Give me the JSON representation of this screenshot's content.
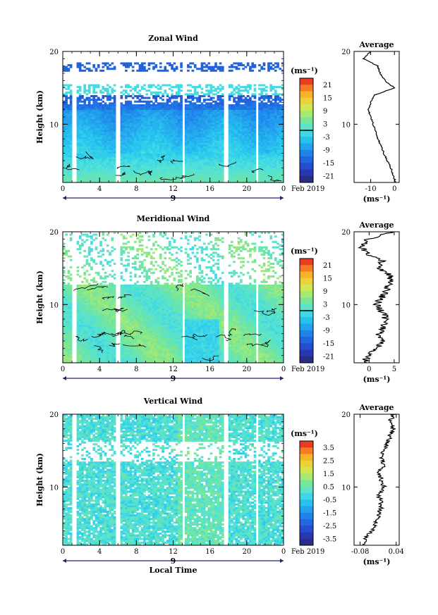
{
  "chart_data": [
    {
      "type": "heatmap",
      "title": "Zonal Wind",
      "ylabel": "Height (km)",
      "xlabel": "",
      "xlim": [
        0,
        24
      ],
      "ylim": [
        2,
        20
      ],
      "x_ticks": [
        "0",
        "4",
        "8",
        "12",
        "16",
        "20",
        "0"
      ],
      "y_ticks": [
        "10",
        "20"
      ],
      "date_label": "9",
      "date_suffix": "Feb 2019",
      "colorbar": {
        "unit": "(ms⁻¹)",
        "ticks": [
          "21",
          "15",
          "9",
          "3",
          "-3",
          "-9",
          "-15",
          "-21"
        ],
        "range": [
          -24,
          24
        ],
        "zero_line": true
      },
      "profile": {
        "title": "Average",
        "xlabel": "(ms⁻¹)",
        "x_ticks": [
          "-10",
          "0"
        ],
        "xlim": [
          -17,
          2
        ],
        "heights": [
          2,
          3,
          4,
          5,
          6,
          7,
          8,
          9,
          10,
          11,
          12,
          13,
          14,
          15,
          16,
          17,
          18,
          19,
          20
        ],
        "values": [
          0.5,
          -0.5,
          -1.5,
          -3,
          -4.5,
          -5.5,
          -7,
          -8,
          -9,
          -10,
          -11,
          -10,
          -8.5,
          0,
          -4,
          -6,
          -7,
          -13,
          -10
        ]
      }
    },
    {
      "type": "heatmap",
      "title": "Meridional Wind",
      "ylabel": "Height (km)",
      "xlabel": "",
      "xlim": [
        0,
        24
      ],
      "ylim": [
        2,
        20
      ],
      "x_ticks": [
        "0",
        "4",
        "8",
        "12",
        "16",
        "20",
        "0"
      ],
      "y_ticks": [
        "10",
        "20"
      ],
      "date_label": "9",
      "date_suffix": "Feb 2019",
      "colorbar": {
        "unit": "(ms⁻¹)",
        "ticks": [
          "21",
          "15",
          "9",
          "3",
          "-3",
          "-9",
          "-15",
          "-21"
        ],
        "range": [
          -24,
          24
        ],
        "zero_line": true
      },
      "profile": {
        "title": "Average",
        "xlabel": "(ms⁻¹)",
        "x_ticks": [
          "0",
          "5"
        ],
        "xlim": [
          -3,
          6
        ],
        "heights": [
          2,
          3,
          4,
          5,
          6,
          7,
          8,
          9,
          10,
          11,
          12,
          13,
          14,
          15,
          16,
          17,
          18,
          19,
          20
        ],
        "values": [
          -1,
          0,
          1.5,
          2.5,
          2,
          3,
          3.5,
          2.5,
          1.5,
          2.5,
          3.5,
          4,
          4.5,
          1.5,
          2.5,
          -0.5,
          -1.5,
          0,
          5
        ]
      }
    },
    {
      "type": "heatmap",
      "title": "Vertical Wind",
      "ylabel": "Height (km)",
      "xlabel": "Local Time",
      "xlim": [
        0,
        24
      ],
      "ylim": [
        2,
        20
      ],
      "x_ticks": [
        "0",
        "4",
        "8",
        "12",
        "16",
        "20",
        "0"
      ],
      "y_ticks": [
        "10",
        "20"
      ],
      "date_label": "9",
      "date_suffix": "Feb 2019",
      "colorbar": {
        "unit": "(ms⁻¹)",
        "ticks": [
          "3.5",
          "2.5",
          "1.5",
          "0.5",
          "-0.5",
          "-1.5",
          "-2.5",
          "-3.5"
        ],
        "range": [
          -4,
          4
        ],
        "zero_line": false
      },
      "profile": {
        "title": "Average",
        "xlabel": "(ms⁻¹)",
        "x_ticks": [
          "-0.08",
          "0.04"
        ],
        "xlim": [
          -0.1,
          0.05
        ],
        "heights": [
          2,
          3,
          4,
          5,
          6,
          7,
          8,
          9,
          10,
          11,
          12,
          13,
          14,
          15,
          16,
          17,
          18,
          19,
          20
        ],
        "values": [
          -0.07,
          -0.06,
          -0.04,
          -0.03,
          -0.02,
          -0.01,
          -0.01,
          -0.02,
          0.0,
          -0.01,
          -0.02,
          0.0,
          -0.01,
          0.0,
          0.01,
          0.02,
          0.03,
          0.02,
          0.03
        ]
      }
    }
  ]
}
